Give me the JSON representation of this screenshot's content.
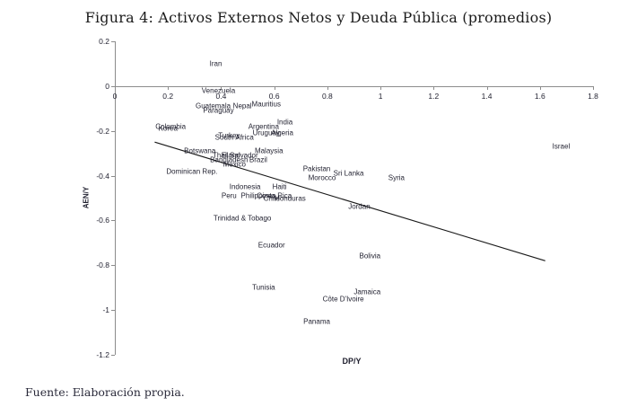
{
  "figure": {
    "title": "Figura 4: Activos Externos Netos y Deuda Pública (promedios)",
    "source_note": "Fuente: Elaboración propia."
  },
  "chart_data": {
    "type": "scatter",
    "title": "Figura 4: Activos Externos Netos y Deuda Pública (promedios)",
    "xlabel": "DP/Y",
    "ylabel": "AEN/Y",
    "xlim": [
      0,
      1.8
    ],
    "ylim": [
      -1.2,
      0.2
    ],
    "x_ticks": [
      0,
      0.2,
      0.4,
      0.6,
      0.8,
      1,
      1.2,
      1.4,
      1.6,
      1.8
    ],
    "y_ticks": [
      0.2,
      0,
      -0.2,
      -0.4,
      -0.6,
      -0.8,
      -1,
      -1.2
    ],
    "grid": false,
    "legend": false,
    "marker_style": "country-name-text-labels-only",
    "axis_color": "#8c8c8c",
    "text_color": "#1f1f2e",
    "trend_line_color": "#1a1a1a",
    "points": [
      {
        "label": "Iran",
        "x": 0.38,
        "y": 0.1
      },
      {
        "label": "Venezuela",
        "x": 0.39,
        "y": -0.02
      },
      {
        "label": "Mauritius",
        "x": 0.57,
        "y": -0.08
      },
      {
        "label": "Guatemala",
        "x": 0.37,
        "y": -0.09
      },
      {
        "label": "Nepal",
        "x": 0.48,
        "y": -0.09
      },
      {
        "label": "Paraguay",
        "x": 0.39,
        "y": -0.11
      },
      {
        "label": "India",
        "x": 0.64,
        "y": -0.16
      },
      {
        "label": "Colombia",
        "x": 0.21,
        "y": -0.18
      },
      {
        "label": "Argentina",
        "x": 0.56,
        "y": -0.18
      },
      {
        "label": "Korea",
        "x": 0.2,
        "y": -0.19
      },
      {
        "label": "Uruguay",
        "x": 0.57,
        "y": -0.21
      },
      {
        "label": "Algeria",
        "x": 0.63,
        "y": -0.21
      },
      {
        "label": "Turkey",
        "x": 0.43,
        "y": -0.22
      },
      {
        "label": "South Africa",
        "x": 0.45,
        "y": -0.23
      },
      {
        "label": "Israel",
        "x": 1.68,
        "y": -0.27
      },
      {
        "label": "Botswana",
        "x": 0.32,
        "y": -0.29
      },
      {
        "label": "Malaysia",
        "x": 0.58,
        "y": -0.29
      },
      {
        "label": "Thailand",
        "x": 0.42,
        "y": -0.31
      },
      {
        "label": "El Salvador",
        "x": 0.47,
        "y": -0.31
      },
      {
        "label": "Bangladesh",
        "x": 0.43,
        "y": -0.33
      },
      {
        "label": "Brazil",
        "x": 0.54,
        "y": -0.33
      },
      {
        "label": "Mexico",
        "x": 0.45,
        "y": -0.35
      },
      {
        "label": "Pakistan",
        "x": 0.76,
        "y": -0.37
      },
      {
        "label": "Dominican Rep.",
        "x": 0.29,
        "y": -0.38
      },
      {
        "label": "Sri Lanka",
        "x": 0.88,
        "y": -0.39
      },
      {
        "label": "Morocco",
        "x": 0.78,
        "y": -0.41
      },
      {
        "label": "Syria",
        "x": 1.06,
        "y": -0.41
      },
      {
        "label": "Indonesia",
        "x": 0.49,
        "y": -0.45
      },
      {
        "label": "Haiti",
        "x": 0.62,
        "y": -0.45
      },
      {
        "label": "Philippines",
        "x": 0.54,
        "y": -0.49
      },
      {
        "label": "Costa Rica",
        "x": 0.6,
        "y": -0.49
      },
      {
        "label": "Peru",
        "x": 0.43,
        "y": -0.49
      },
      {
        "label": "Chile",
        "x": 0.59,
        "y": -0.5
      },
      {
        "label": "Honduras",
        "x": 0.66,
        "y": -0.5
      },
      {
        "label": "Jordan",
        "x": 0.92,
        "y": -0.54
      },
      {
        "label": "Trinidad & Tobago",
        "x": 0.48,
        "y": -0.59
      },
      {
        "label": "Ecuador",
        "x": 0.59,
        "y": -0.71
      },
      {
        "label": "Bolivia",
        "x": 0.96,
        "y": -0.76
      },
      {
        "label": "Tunisia",
        "x": 0.56,
        "y": -0.9
      },
      {
        "label": "Jamaica",
        "x": 0.95,
        "y": -0.92
      },
      {
        "label": "Côte D'Ivoire",
        "x": 0.86,
        "y": -0.95
      },
      {
        "label": "Panama",
        "x": 0.76,
        "y": -1.05
      }
    ],
    "trend_line": {
      "x1": 0.15,
      "y1": -0.25,
      "x2": 1.62,
      "y2": -0.78
    }
  }
}
